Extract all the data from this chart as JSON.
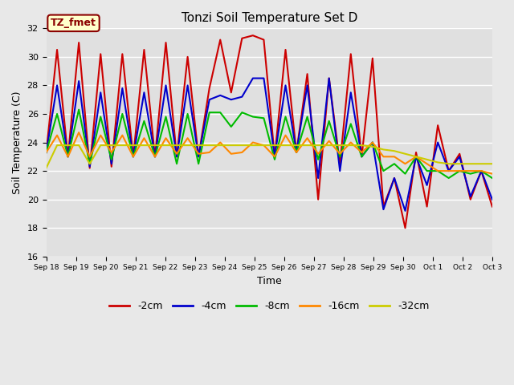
{
  "title": "Tonzi Soil Temperature Set D",
  "xlabel": "Time",
  "ylabel": "Soil Temperature (C)",
  "ylim": [
    16,
    32
  ],
  "yticks": [
    16,
    18,
    20,
    22,
    24,
    26,
    28,
    30,
    32
  ],
  "fig_bg_color": "#e8e8e8",
  "plot_bg_color": "#e0e0e0",
  "annotation_text": "TZ_fmet",
  "annotation_bg": "#ffffcc",
  "annotation_border": "#8b0000",
  "x_labels": [
    "Sep 18",
    "Sep 19",
    "Sep 20",
    "Sep 21",
    "Sep 22",
    "Sep 23",
    "Sep 24",
    "Sep 25",
    "Sep 26",
    "Sep 27",
    "Sep 28",
    "Sep 29",
    "Sep 30",
    "Oct 1",
    "Oct 2",
    "Oct 3"
  ],
  "series": {
    "-2cm": {
      "color": "#cc0000",
      "data": [
        23.3,
        30.5,
        23.0,
        31.0,
        22.2,
        30.2,
        22.3,
        30.2,
        23.0,
        30.5,
        23.0,
        31.0,
        23.0,
        30.0,
        23.0,
        27.8,
        31.2,
        27.5,
        31.3,
        31.5,
        31.2,
        23.0,
        30.5,
        23.3,
        28.8,
        20.0,
        28.5,
        22.5,
        30.2,
        23.0,
        29.9,
        19.5,
        21.5,
        18.0,
        23.3,
        19.5,
        25.2,
        22.0,
        23.2,
        20.0,
        22.0,
        19.5
      ]
    },
    "-4cm": {
      "color": "#0000cc",
      "data": [
        23.3,
        28.0,
        23.0,
        28.3,
        22.3,
        27.5,
        22.5,
        27.8,
        23.0,
        27.5,
        23.0,
        28.0,
        23.0,
        28.0,
        23.0,
        27.0,
        27.3,
        27.0,
        27.2,
        28.5,
        28.5,
        23.0,
        28.0,
        23.3,
        28.0,
        21.5,
        28.5,
        22.0,
        27.5,
        23.0,
        24.0,
        19.3,
        21.5,
        19.2,
        23.0,
        21.0,
        24.0,
        22.0,
        23.0,
        20.2,
        22.0,
        20.0
      ]
    },
    "-8cm": {
      "color": "#00bb00",
      "data": [
        23.3,
        26.0,
        23.0,
        26.3,
        22.5,
        25.8,
        22.8,
        26.0,
        23.0,
        25.5,
        23.0,
        25.8,
        22.5,
        26.0,
        22.5,
        26.1,
        26.1,
        25.1,
        26.1,
        25.8,
        25.7,
        22.8,
        25.8,
        23.3,
        25.8,
        22.8,
        25.5,
        23.0,
        25.3,
        23.0,
        24.0,
        22.0,
        22.5,
        21.8,
        23.0,
        22.0,
        22.0,
        21.5,
        22.0,
        21.8,
        22.0,
        21.5
      ]
    },
    "-16cm": {
      "color": "#ff8800",
      "data": [
        23.3,
        24.5,
        23.0,
        24.7,
        23.0,
        24.5,
        23.3,
        24.5,
        23.0,
        24.3,
        23.0,
        24.3,
        23.2,
        24.3,
        23.2,
        23.3,
        24.0,
        23.2,
        23.3,
        24.0,
        23.8,
        23.0,
        24.5,
        23.3,
        24.3,
        23.2,
        24.1,
        23.2,
        24.0,
        23.3,
        24.0,
        23.0,
        23.0,
        22.5,
        23.0,
        22.5,
        22.0,
        22.0,
        22.0,
        22.0,
        22.0,
        21.8
      ]
    },
    "-32cm": {
      "color": "#cccc00",
      "data": [
        22.2,
        23.8,
        23.8,
        23.8,
        22.5,
        23.8,
        23.8,
        23.8,
        23.8,
        23.8,
        23.8,
        23.8,
        23.8,
        23.8,
        23.8,
        23.8,
        23.8,
        23.8,
        23.8,
        23.8,
        23.8,
        23.8,
        23.8,
        23.8,
        23.8,
        23.8,
        23.8,
        23.8,
        23.8,
        23.8,
        23.7,
        23.5,
        23.4,
        23.2,
        23.0,
        22.8,
        22.6,
        22.5,
        22.5,
        22.5,
        22.5,
        22.5
      ]
    }
  },
  "legend_labels": [
    "-2cm",
    "-4cm",
    "-8cm",
    "-16cm",
    "-32cm"
  ],
  "legend_colors": [
    "#cc0000",
    "#0000cc",
    "#00bb00",
    "#ff8800",
    "#cccc00"
  ]
}
